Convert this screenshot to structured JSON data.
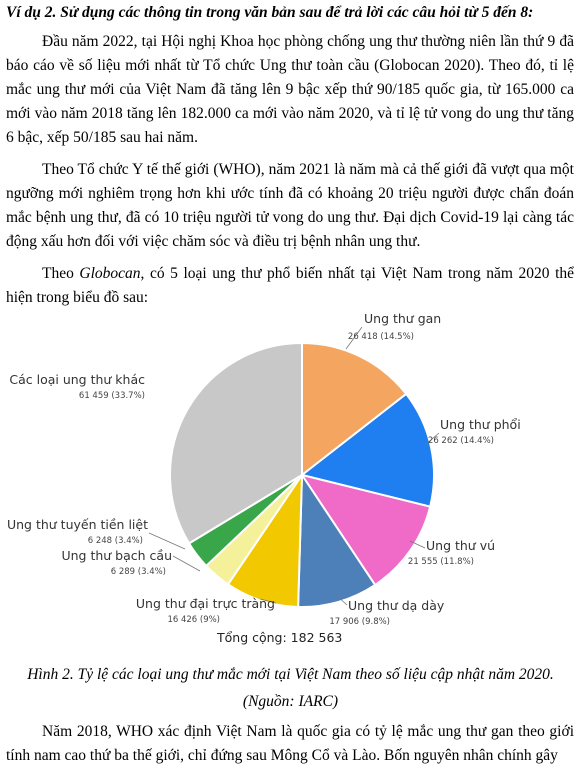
{
  "heading": "Ví dụ 2. Sử dụng các thông tin trong văn bản sau để trả lời các câu hỏi từ 5 đến 8:",
  "paragraphs": {
    "p1": "Đầu năm 2022, tại Hội nghị Khoa học phòng chống ung thư thường niên lần thứ 9 đã báo cáo về số liệu mới nhất từ Tổ chức Ung thư toàn cầu (Globocan 2020). Theo đó, tỉ lệ mắc ung thư mới của Việt Nam đã tăng lên 9 bậc xếp thứ 90/185 quốc gia, từ 165.000 ca mới vào năm 2018 tăng lên 182.000 ca mới vào năm 2020, và tỉ lệ tử vong do ung thư tăng 6 bậc, xếp 50/185 sau hai năm.",
    "p2": "Theo Tổ chức Y tế thế giới (WHO), năm 2021 là năm mà cả thế giới đã vượt qua một ngưỡng mới nghiêm trọng hơn khi ước tính đã có khoảng 20 triệu người được chẩn đoán mắc bệnh ung thư, đã có 10 triệu người tử vong do ung thư. Đại dịch Covid-19 lại càng tác động xấu hơn đối với việc chăm sóc và điều trị bệnh nhân ung thư.",
    "p3_before": "Theo ",
    "p3_italic": "Globocan",
    "p3_after": ", có 5 loại ung thư phổ biến nhất tại Việt Nam trong năm 2020 thể hiện trong biểu đồ sau:",
    "p4": "Năm 2018, WHO xác định Việt Nam là quốc gia có tỷ lệ mắc ung thư gan theo giới tính nam cao thứ ba thế giới, chỉ đứng sau Mông Cổ và Lào. Bốn nguyên nhân chính gây"
  },
  "captions": {
    "figure": "Hình 2. Tỷ lệ các loại ung thư mắc mới tại Việt Nam theo số liệu cập nhật năm 2020.",
    "source": "(Nguồn: IARC)"
  },
  "chart_data": {
    "type": "pie",
    "total_label": "Tổng cộng: 182 563",
    "slices": [
      {
        "name": "Ung thư gan",
        "value": 26418,
        "label": "26 418 (14.5%)",
        "percent": 14.5,
        "color": "#f4a660"
      },
      {
        "name": "Ung thư phổi",
        "value": 26262,
        "label": "26 262 (14.4%)",
        "percent": 14.4,
        "color": "#1f7ef0"
      },
      {
        "name": "Ung thư vú",
        "value": 21555,
        "label": "21 555 (11.8%)",
        "percent": 11.8,
        "color": "#f06ac8"
      },
      {
        "name": "Ung thư dạ dày",
        "value": 17906,
        "label": "17 906 (9.8%)",
        "percent": 9.8,
        "color": "#4d7fb8"
      },
      {
        "name": "Ung thư đại trực tràng",
        "value": 16426,
        "label": "16 426 (9%)",
        "percent": 9.0,
        "color": "#f2c800"
      },
      {
        "name": "Ung thư bạch cầu",
        "value": 6289,
        "label": "6 289 (3.4%)",
        "percent": 3.4,
        "color": "#f5f19a"
      },
      {
        "name": "Ung thư tuyến tiền liệt",
        "value": 6248,
        "label": "6 248 (3.4%)",
        "percent": 3.4,
        "color": "#3aa64a"
      },
      {
        "name": "Các loại ung thư khác",
        "value": 61459,
        "label": "61 459 (33.7%)",
        "percent": 33.7,
        "color": "#c8c8c8"
      }
    ]
  }
}
